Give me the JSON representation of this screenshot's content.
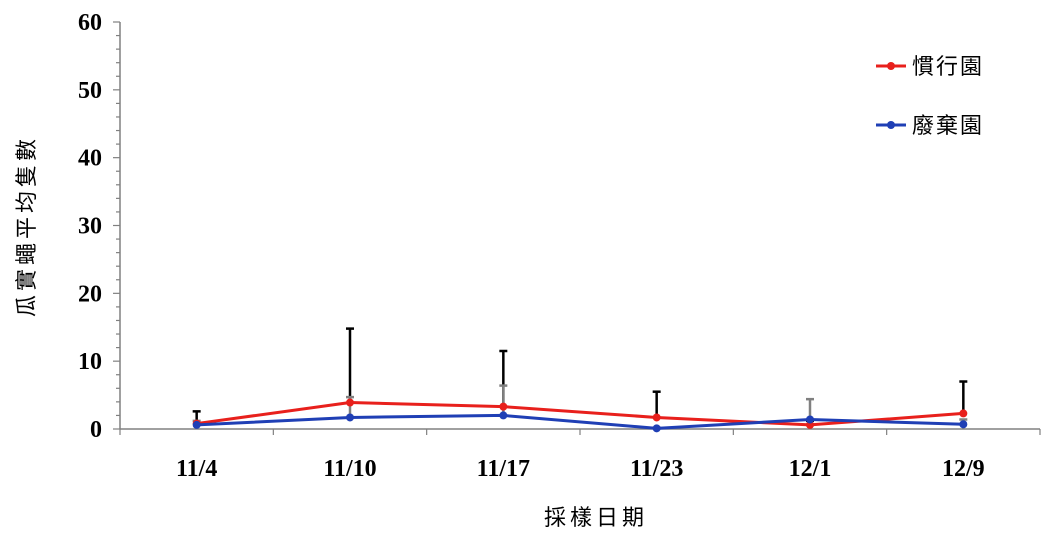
{
  "chart_data": {
    "type": "line",
    "categories": [
      "11/4",
      "11/10",
      "11/17",
      "11/23",
      "12/1",
      "12/9"
    ],
    "xlabel": "採樣日期",
    "ylabel": "瓜實蠅平均隻數",
    "ylim": [
      0,
      60
    ],
    "yticks": [
      0,
      10,
      20,
      30,
      40,
      50,
      60
    ],
    "grid": false,
    "legend_position": "top-right",
    "series": [
      {
        "name": "慣行園",
        "color": "#e8201c",
        "values": [
          0.8,
          3.9,
          3.3,
          1.7,
          0.6,
          2.3
        ],
        "error_upper": [
          1.8,
          10.9,
          8.2,
          3.8,
          0.6,
          4.7
        ],
        "error_lower": [
          0.0,
          0.0,
          0.0,
          0.0,
          0.6,
          0.0
        ],
        "error_color": "#000000"
      },
      {
        "name": "廢棄園",
        "color": "#1f3fb5",
        "values": [
          0.6,
          1.7,
          2.0,
          0.1,
          1.4,
          0.7
        ],
        "error_upper": [
          0.6,
          3.0,
          4.4,
          0.1,
          3.0,
          0.7
        ],
        "error_lower": [
          0.0,
          0.5,
          0.0,
          0.1,
          0.0,
          0.7
        ],
        "error_color": "#808080"
      }
    ]
  }
}
